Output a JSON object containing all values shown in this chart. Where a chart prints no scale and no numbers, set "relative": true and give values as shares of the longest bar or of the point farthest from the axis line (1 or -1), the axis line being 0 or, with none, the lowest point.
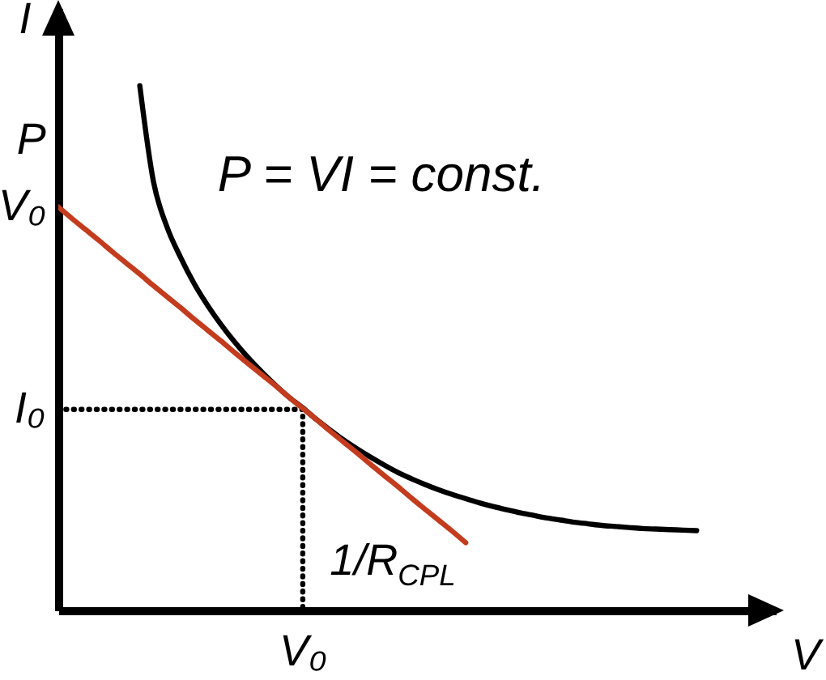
{
  "chart_data": {
    "type": "line",
    "relative": true,
    "xlabel": "V",
    "ylabel": "I",
    "categories": [
      null,
      null,
      null,
      null,
      null,
      null,
      null,
      null,
      null,
      null,
      null,
      null,
      null,
      null,
      null,
      null,
      null,
      null,
      null,
      null,
      null,
      null,
      null,
      null,
      null,
      null,
      null,
      null,
      null,
      null,
      null,
      null,
      null,
      null,
      null,
      null,
      null,
      null,
      null,
      null,
      null,
      null,
      null,
      null,
      null,
      null,
      null,
      null
    ],
    "series": [
      {
        "type": "step",
        "color": "#000000",
        "line_style": "dotted",
        "values": [
          0.383,
          0.383,
          0.383,
          0.383,
          0.383,
          0.383,
          0.383,
          0.383,
          0.383,
          0.383,
          0.383,
          0.383,
          0.383,
          0.383,
          0.383,
          0.383,
          0.383,
          0.383,
          0,
          null,
          null,
          null,
          null,
          null,
          null,
          null,
          null,
          null,
          null,
          null,
          null,
          null,
          null,
          null,
          null,
          null,
          null,
          null,
          null,
          null,
          null,
          null,
          null,
          null,
          null,
          null,
          null,
          null
        ]
      },
      {
        "name": "P = VI = const.",
        "color": "#000000",
        "values": [
          null,
          null,
          null,
          null,
          null,
          null,
          1,
          0.818,
          0.731,
          0.673,
          0.623,
          0.581,
          0.544,
          0.511,
          0.481,
          0.454,
          0.429,
          0.406,
          0.386,
          0.364,
          0.344,
          0.325,
          0.308,
          0.292,
          0.277,
          0.263,
          0.251,
          0.24,
          0.23,
          0.221,
          0.213,
          0.205,
          0.198,
          0.192,
          0.186,
          0.181,
          0.176,
          0.172,
          0.168,
          0.165,
          0.162,
          0.16,
          0.158,
          0.156,
          0.155,
          0.154,
          0.153,
          0.152
        ]
      },
      {
        "name": "1/R$_{CPL}$",
        "color": "#c43c1e",
        "values": [
          0.769,
          0.747,
          0.726,
          0.705,
          0.683,
          0.662,
          0.641,
          0.619,
          0.598,
          0.577,
          0.555,
          0.534,
          0.513,
          0.491,
          0.47,
          0.449,
          0.428,
          0.406,
          0.385,
          0.364,
          0.342,
          0.321,
          0.3,
          0.278,
          0.257,
          0.236,
          0.214,
          0.193,
          0.172,
          0.151,
          0.129,
          null,
          null,
          null,
          null,
          null,
          null,
          null,
          null,
          null,
          null,
          null,
          null,
          null,
          null,
          null,
          null,
          null
        ]
      }
    ],
    "annotations": [
      "P\nV₀",
      "I₀",
      "V₀"
    ]
  }
}
